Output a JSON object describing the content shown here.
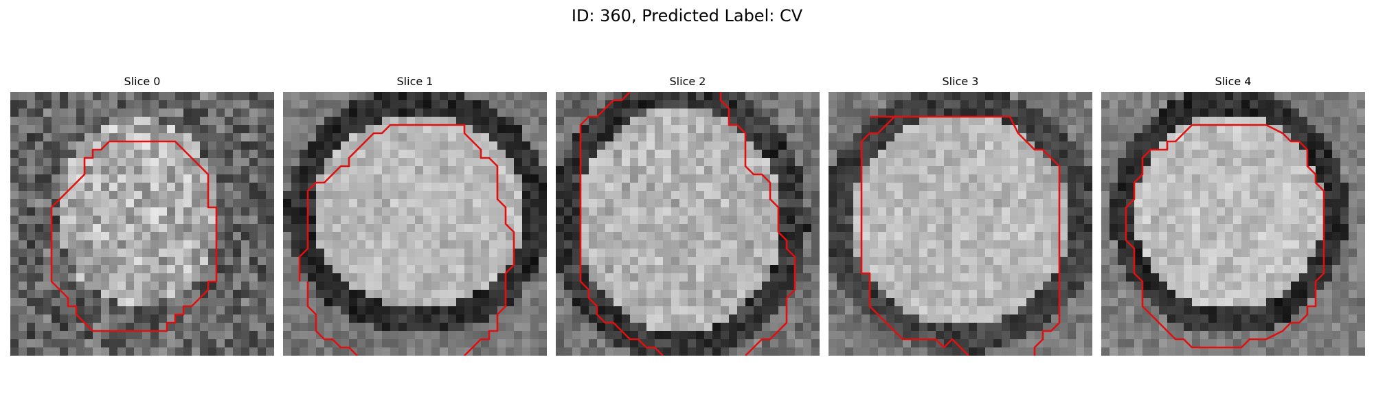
{
  "figure": {
    "title": "ID: 360, Predicted Label: CV"
  },
  "panels": [
    {
      "title": "Slice 0"
    },
    {
      "title": "Slice 1"
    },
    {
      "title": "Slice 2"
    },
    {
      "title": "Slice 3"
    },
    {
      "title": "Slice 4"
    }
  ],
  "colors": {
    "contour": "#e01010",
    "background": "#ffffff"
  }
}
